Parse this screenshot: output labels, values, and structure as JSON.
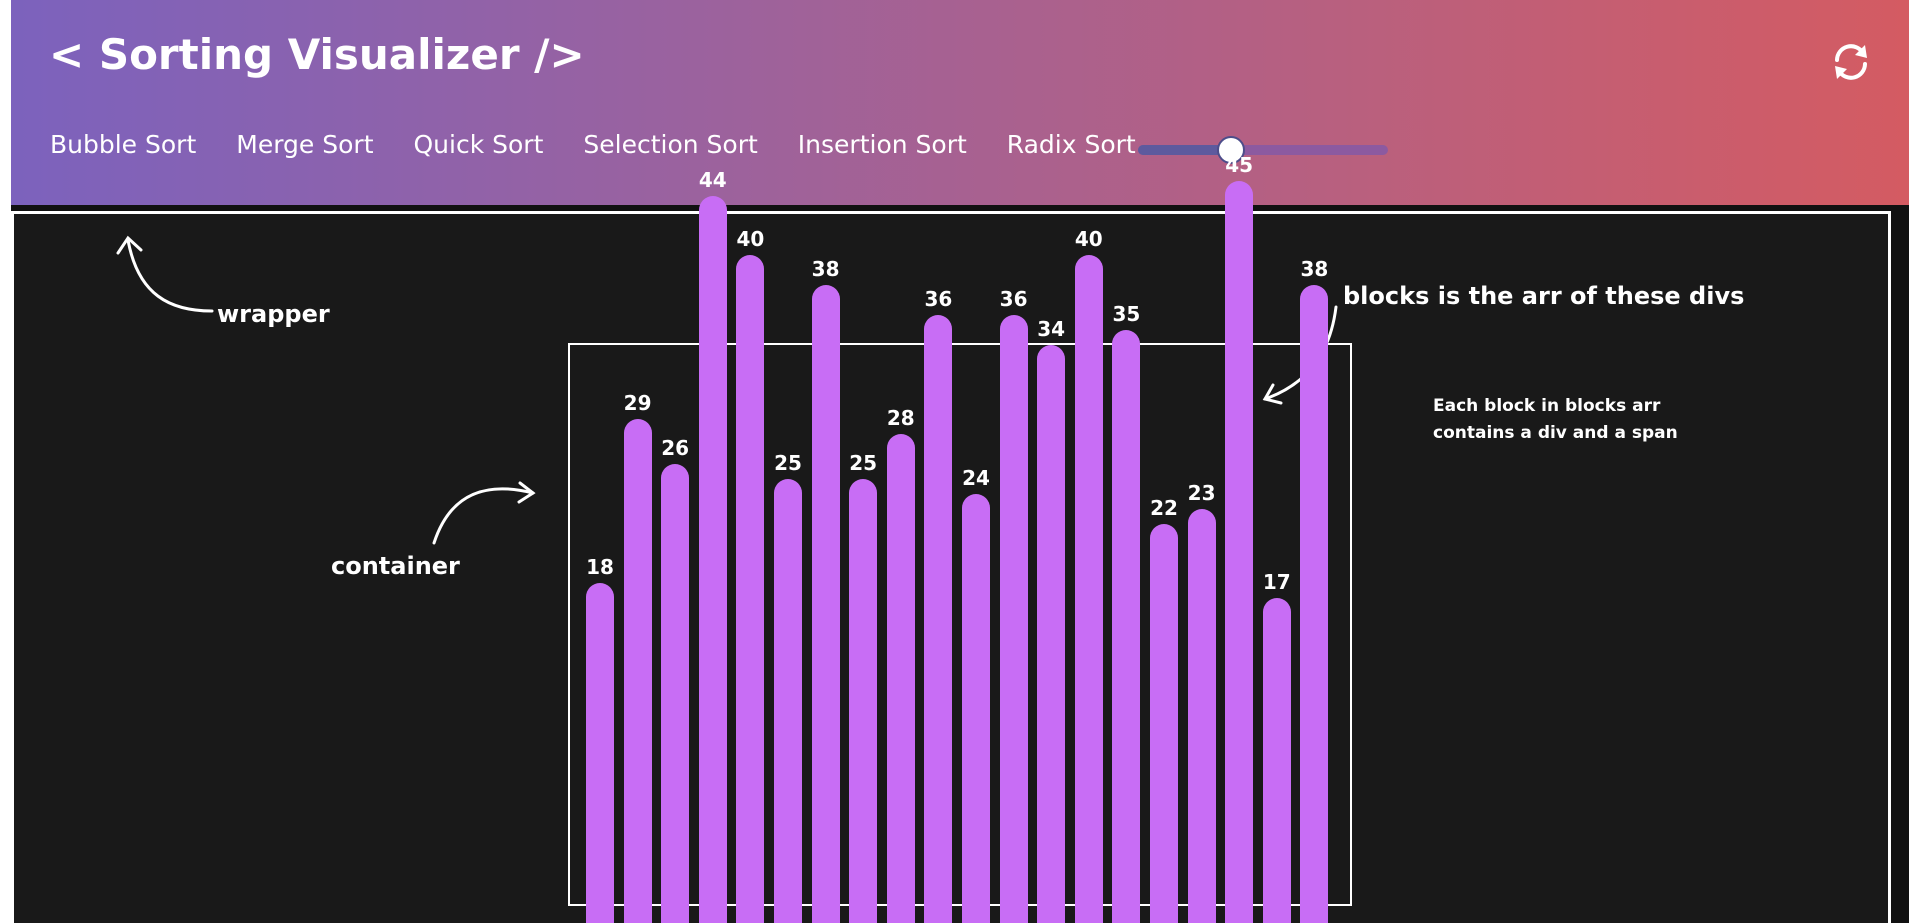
{
  "header": {
    "title": "< Sorting Visualizer />",
    "nav": [
      "Bubble Sort",
      "Merge Sort",
      "Quick Sort",
      "Selection Sort",
      "Insertion Sort",
      "Radix Sort"
    ],
    "slider_value": 0.37,
    "refresh_icon": "refresh-icon"
  },
  "annotations": {
    "wrapper": "wrapper",
    "container": "container",
    "blocks": "blocks is the arr of these divs",
    "each_line1": "Each block in blocks arr",
    "each_line2": "contains a div and a span"
  },
  "blocks": [
    18,
    29,
    26,
    44,
    40,
    25,
    38,
    25,
    28,
    36,
    24,
    36,
    34,
    40,
    35,
    22,
    23,
    45,
    17,
    38
  ],
  "colors": {
    "bar": "#c86df5",
    "background": "#191919"
  }
}
